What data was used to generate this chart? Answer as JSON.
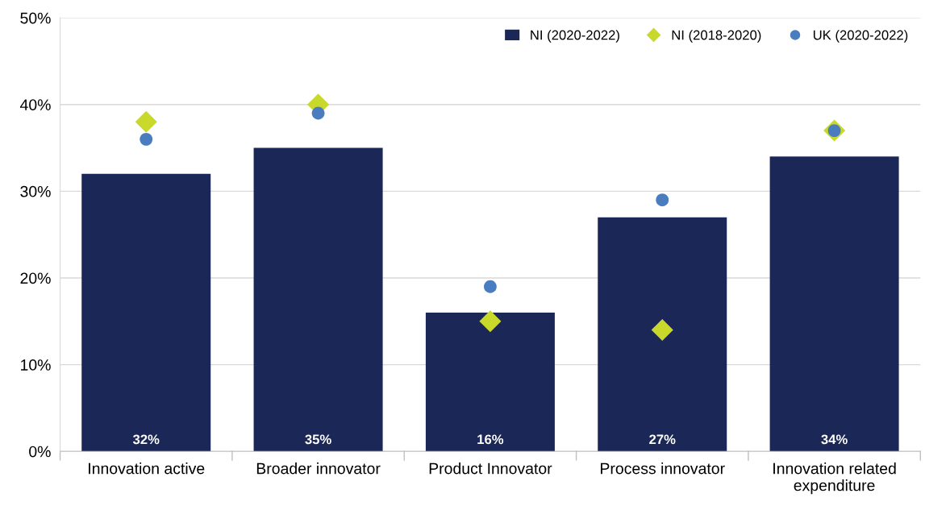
{
  "chart_data": {
    "type": "bar",
    "categories": [
      "Innovation active",
      "Broader innovator",
      "Product Innovator",
      "Process innovator",
      "Innovation related\nexpenditure"
    ],
    "series": [
      {
        "name": "NI (2020-2022)",
        "color": "#1b2857",
        "values": [
          32,
          35,
          16,
          27,
          34
        ],
        "value_labels": [
          "32%",
          "35%",
          "16%",
          "27%",
          "34%"
        ]
      },
      {
        "name": "NI (2018-2020)",
        "type": "scatter",
        "marker": "diamond",
        "color": "#c9d92b",
        "values": [
          38,
          40,
          15,
          14,
          37
        ]
      },
      {
        "name": "UK (2020-2022)",
        "type": "scatter",
        "marker": "circle",
        "color": "#4a7dc0",
        "values": [
          36,
          39,
          19,
          29,
          37
        ]
      }
    ],
    "ylim": [
      0,
      50
    ],
    "yticks": [
      {
        "value": 0,
        "label": "0%"
      },
      {
        "value": 10,
        "label": "10%"
      },
      {
        "value": 20,
        "label": "20%"
      },
      {
        "value": 30,
        "label": "30%"
      },
      {
        "value": 40,
        "label": "40%"
      },
      {
        "value": 50,
        "label": "50%"
      }
    ],
    "grid": "y",
    "legend": "top right"
  }
}
